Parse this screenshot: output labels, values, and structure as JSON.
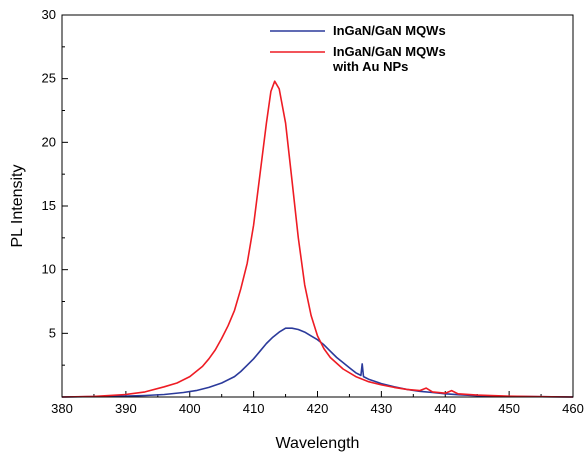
{
  "chart_data": {
    "type": "line",
    "xlabel": "Wavelength",
    "ylabel": "PL Intensity",
    "xlim": [
      380,
      460
    ],
    "ylim": [
      0,
      30
    ],
    "x_ticks": [
      380,
      390,
      400,
      410,
      420,
      430,
      440,
      450,
      460
    ],
    "y_ticks": [
      5,
      10,
      15,
      20,
      25,
      30
    ],
    "grid": false,
    "legend_position": "top-right",
    "series": [
      {
        "name": "InGaN/GaN MQWs",
        "name_lines": [
          "InGaN/GaN MQWs"
        ],
        "color": "#2b3a9b",
        "x": [
          380,
          385,
          390,
          393,
          396,
          399,
          401,
          403,
          405,
          407,
          408,
          409,
          410,
          411,
          412,
          413,
          414,
          415,
          416,
          417,
          418,
          419,
          420,
          421,
          422,
          423,
          424,
          425,
          426,
          426.8,
          427,
          427.2,
          428,
          430,
          432,
          434,
          436,
          438,
          440,
          442,
          445,
          450,
          455,
          460
        ],
        "y": [
          0.0,
          0.03,
          0.07,
          0.12,
          0.2,
          0.35,
          0.5,
          0.75,
          1.1,
          1.6,
          2.0,
          2.5,
          3.0,
          3.6,
          4.2,
          4.7,
          5.1,
          5.4,
          5.4,
          5.3,
          5.1,
          4.8,
          4.5,
          4.1,
          3.6,
          3.1,
          2.7,
          2.3,
          1.9,
          1.7,
          2.6,
          1.6,
          1.4,
          1.05,
          0.8,
          0.6,
          0.45,
          0.35,
          0.25,
          0.18,
          0.1,
          0.05,
          0.02,
          0.0
        ]
      },
      {
        "name": "InGaN/GaN MQWs with Au NPs",
        "name_lines": [
          "InGaN/GaN MQWs",
          "with Au NPs"
        ],
        "color": "#ee1c24",
        "x": [
          380,
          385,
          390,
          393,
          396,
          398,
          400,
          402,
          403,
          404,
          405,
          406,
          407,
          408,
          409,
          410,
          411,
          412,
          412.7,
          413.3,
          414,
          415,
          416,
          417,
          418,
          419,
          420,
          421,
          422,
          424,
          426,
          428,
          430,
          432,
          434,
          436,
          437,
          438,
          440,
          441,
          442,
          445,
          450,
          455,
          460
        ],
        "y": [
          0.0,
          0.05,
          0.2,
          0.4,
          0.8,
          1.1,
          1.6,
          2.4,
          3.0,
          3.7,
          4.6,
          5.6,
          6.8,
          8.5,
          10.5,
          13.5,
          17.5,
          21.5,
          24.0,
          24.8,
          24.2,
          21.5,
          17.0,
          12.5,
          8.8,
          6.4,
          4.8,
          3.8,
          3.1,
          2.2,
          1.6,
          1.2,
          0.95,
          0.75,
          0.6,
          0.5,
          0.7,
          0.4,
          0.3,
          0.5,
          0.25,
          0.15,
          0.06,
          0.02,
          0.0
        ]
      }
    ]
  }
}
